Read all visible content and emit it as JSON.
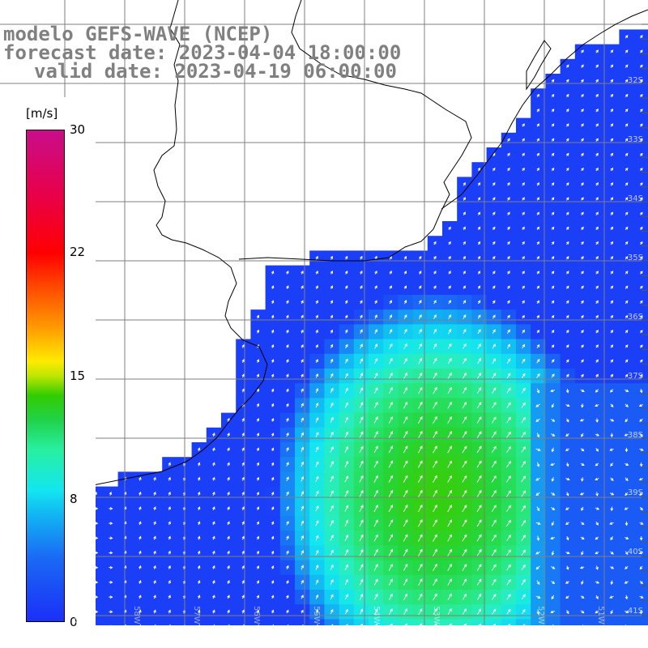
{
  "title": {
    "line1": "modelo GEFS-WAVE (NCEP)",
    "line2": "forecast date: 2023-04-04 18:00:00",
    "line3": "valid date: 2023-04-19 06:00:00"
  },
  "colorbar": {
    "units": "[m/s]",
    "ticks": [
      "30",
      "22",
      "15",
      "8",
      "0"
    ],
    "tick_values": [
      30,
      22,
      15,
      8,
      0
    ],
    "colors": {
      "min": "#1b2ff8",
      "low": "#13e6f0",
      "mid": "#32cc00",
      "high": "#ff0000",
      "max": "#c80e8a"
    }
  },
  "lat_labels": [
    "32S",
    "33S",
    "34S",
    "35S",
    "36S",
    "37S",
    "38S",
    "39S",
    "40S",
    "41S"
  ],
  "lon_labels": [
    "59W",
    "58W",
    "57W",
    "56W",
    "55W",
    "54W",
    "53W",
    "52W",
    "51W"
  ],
  "land_color": "#ffffff",
  "grid_color": "#7f7f7f",
  "arrow_color": "#ffffff"
}
